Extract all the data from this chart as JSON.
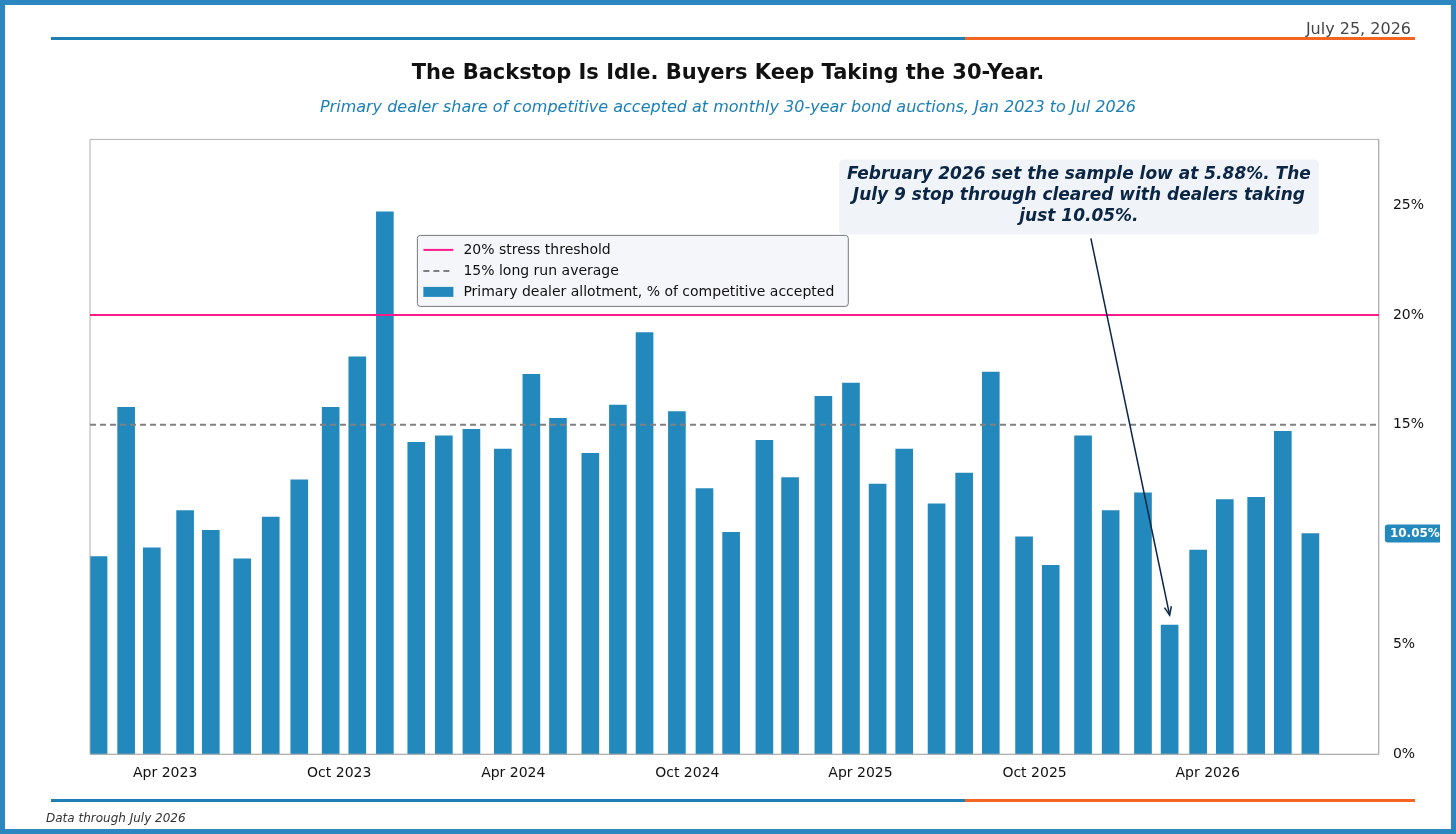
{
  "chart_data": {
    "type": "bar",
    "title": "The Backstop Is Idle. Buyers Keep Taking the 30-Year.",
    "subtitle": "Primary dealer share of competitive accepted at monthly 30-year bond auctions, Jan 2023 to Jul 2026",
    "x": [
      "2023-01-21",
      "2023-02-19",
      "2023-03-18",
      "2023-04-22",
      "2023-05-19",
      "2023-06-21",
      "2023-07-21",
      "2023-08-20",
      "2023-09-22",
      "2023-10-20",
      "2023-11-18",
      "2023-12-21",
      "2024-01-19",
      "2024-02-17",
      "2024-03-21",
      "2024-04-20",
      "2024-05-18",
      "2024-06-21",
      "2024-07-20",
      "2024-08-17",
      "2024-09-20",
      "2024-10-19",
      "2024-11-16",
      "2024-12-21",
      "2025-01-17",
      "2025-02-21",
      "2025-03-22",
      "2025-04-19",
      "2025-05-17",
      "2025-06-20",
      "2025-07-19",
      "2025-08-16",
      "2025-09-20",
      "2025-10-18",
      "2025-11-21",
      "2025-12-20",
      "2026-01-23",
      "2026-02-20",
      "2026-03-22",
      "2026-04-19",
      "2026-05-22",
      "2026-06-19",
      "2026-07-18"
    ],
    "series": [
      {
        "name": "Primary dealer allotment, % of competitive accepted",
        "color": "#2389bd",
        "values": [
          9.0,
          15.8,
          9.4,
          11.1,
          10.2,
          8.9,
          10.8,
          12.5,
          15.8,
          18.1,
          24.7,
          14.2,
          14.5,
          14.8,
          13.9,
          17.3,
          15.3,
          13.7,
          15.9,
          19.2,
          15.6,
          12.1,
          10.1,
          14.3,
          12.6,
          16.3,
          16.9,
          12.3,
          13.9,
          11.4,
          12.8,
          17.4,
          9.9,
          8.6,
          14.5,
          11.1,
          11.9,
          5.88,
          9.3,
          11.6,
          11.7,
          14.7,
          10.05
        ]
      }
    ],
    "xlim": [
      "2023-01-12",
      "2026-09-28"
    ],
    "xticks": [
      {
        "value": "2023-04-01",
        "label": "Apr 2023"
      },
      {
        "value": "2023-10-01",
        "label": "Oct 2023"
      },
      {
        "value": "2024-04-01",
        "label": "Apr 2024"
      },
      {
        "value": "2024-10-01",
        "label": "Oct 2024"
      },
      {
        "value": "2025-04-01",
        "label": "Apr 2025"
      },
      {
        "value": "2025-10-01",
        "label": "Oct 2025"
      },
      {
        "value": "2026-04-01",
        "label": "Apr 2026"
      }
    ],
    "ylim": [
      0,
      28
    ],
    "yticks": [
      {
        "value": 0,
        "label": "0%"
      },
      {
        "value": 5,
        "label": "5%"
      },
      {
        "value": 15,
        "label": "15%"
      },
      {
        "value": 20,
        "label": "20%"
      },
      {
        "value": 25,
        "label": "25%"
      }
    ],
    "ref_lines": [
      {
        "axis": "y",
        "value": 20,
        "label": "20% stress threshold",
        "color": "#ff1a8c",
        "line_style": "solid"
      },
      {
        "axis": "y",
        "value": 15,
        "label": "15% long run average",
        "color": "#808080",
        "line_style": "dashed"
      }
    ],
    "annotations": [
      "July 25, 2026",
      "February 2026 set the sample low at 5.88%. The July 9 stop through cleared with dealers taking just 10.05%.",
      "10.05%",
      "Data through July 2026"
    ],
    "legend": "top",
    "grid": false
  }
}
